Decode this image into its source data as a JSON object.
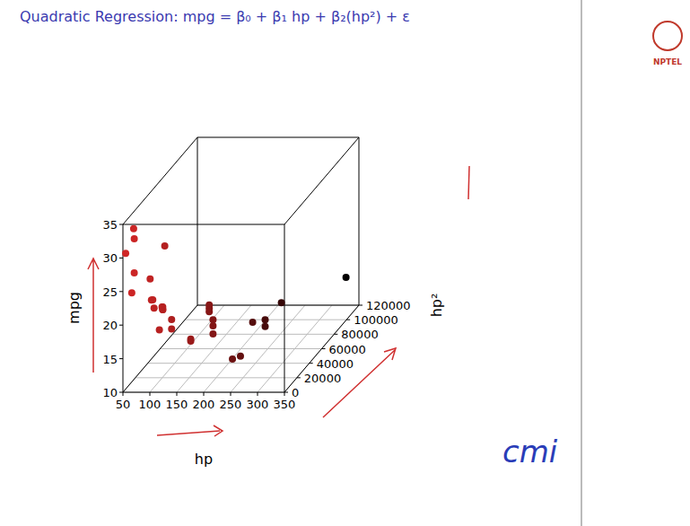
{
  "chart_data": {
    "type": "scatter3d",
    "title": "Quadratic Regression: mpg = β₀ + β₁ hp + β₂(hp²) + ε",
    "xlabel": "hp",
    "ylabel": "mpg",
    "zlabel": "hp²",
    "x": [
      110,
      110,
      93,
      110,
      175,
      105,
      245,
      62,
      95,
      123,
      123,
      180,
      180,
      180,
      205,
      215,
      230,
      66,
      52,
      65,
      97,
      150,
      150,
      245,
      175,
      66,
      91,
      113,
      264,
      175,
      335,
      109
    ],
    "y": [
      21.0,
      21.0,
      22.8,
      21.4,
      18.7,
      18.1,
      14.3,
      24.4,
      22.8,
      19.2,
      17.8,
      16.4,
      17.3,
      15.2,
      10.4,
      10.4,
      14.7,
      32.4,
      30.4,
      33.9,
      21.5,
      15.5,
      15.2,
      13.3,
      19.2,
      27.3,
      26.0,
      30.4,
      15.8,
      19.7,
      15.0,
      21.4
    ],
    "z": [
      12100,
      12100,
      8649,
      12100,
      30625,
      11025,
      60025,
      3844,
      9025,
      15129,
      15129,
      32400,
      32400,
      32400,
      42025,
      46225,
      52900,
      4356,
      2704,
      4225,
      9409,
      22500,
      22500,
      60025,
      30625,
      4356,
      8281,
      12769,
      69696,
      30625,
      112225,
      11881
    ],
    "xlim": [
      50,
      350
    ],
    "xticks": [
      50,
      100,
      150,
      200,
      250,
      300,
      350
    ],
    "ylim": [
      10,
      35
    ],
    "yticks": [
      10,
      15,
      20,
      25,
      30,
      35
    ],
    "zlim": [
      0,
      120000
    ],
    "zticks": [
      0,
      20000,
      40000,
      60000,
      80000,
      100000,
      120000
    ],
    "grid": true,
    "marker": "circle"
  },
  "logos": {
    "nptel": "NPTEL",
    "cmi": "cmi"
  }
}
